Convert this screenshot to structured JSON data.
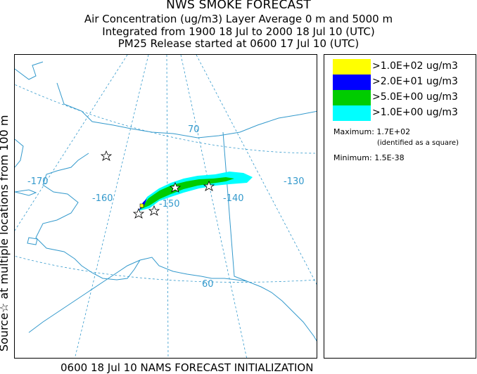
{
  "title": {
    "line1": "NWS SMOKE FORECAST",
    "line2": "Air Concentration (ug/m3) Layer Average    0 m and  5000 m",
    "line3": "Integrated from 1900 18 Jul to 2000 18 Jul 10 (UTC)",
    "line4": "PM25 Release started at 0600 17 Jul 10 (UTC)"
  },
  "side_label": "Source☆ at multiple locations  from   100 m",
  "bottom_caption": "0600 18 Jul 10 NAMS FORECAST INITIALIZATION",
  "legend": {
    "items": [
      {
        "label": ">1.0E+02 ug/m3",
        "color": "#ffff00"
      },
      {
        "label": ">2.0E+01 ug/m3",
        "color": "#0000ff"
      },
      {
        "label": ">5.0E+00 ug/m3",
        "color": "#00cc00"
      },
      {
        "label": ">1.0E+00 ug/m3",
        "color": "#00ffff"
      }
    ],
    "maximum_label": "Maximum:",
    "maximum_value": "1.7E+02",
    "maximum_note": "(identified as a square)",
    "minimum_label": "Minimum:",
    "minimum_value": "1.5E-38"
  },
  "map": {
    "lat_labels": [
      "70",
      "60"
    ],
    "lon_labels": [
      "-170",
      "-160",
      "-150",
      "-140",
      "-130"
    ],
    "grid_color": "#3399cc",
    "coast_color": "#3399cc"
  }
}
